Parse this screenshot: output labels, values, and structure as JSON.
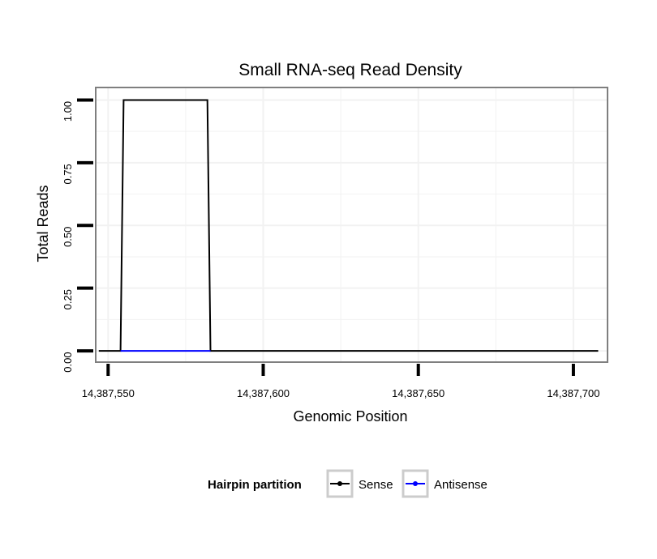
{
  "chart_data": {
    "type": "line",
    "title": "Small RNA-seq Read Density",
    "xlabel": "Genomic Position",
    "ylabel": "Total Reads",
    "xlim": [
      14387546,
      14387711
    ],
    "ylim": [
      -0.045,
      1.05
    ],
    "x_ticks": [
      14387550,
      14387600,
      14387650,
      14387700
    ],
    "x_tick_labels": [
      "14,387,550",
      "14,387,600",
      "14,387,650",
      "14,387,700"
    ],
    "y_ticks": [
      0,
      0.25,
      0.5,
      0.75,
      1
    ],
    "y_tick_labels": [
      "0.00",
      "0.25",
      "0.50",
      "0.75",
      "1.00"
    ],
    "grid": true,
    "legend": {
      "title": "Hairpin partition",
      "position": "bottom",
      "entries": [
        "Sense",
        "Antisense"
      ]
    },
    "series": [
      {
        "name": "Sense",
        "color": "#000000",
        "x": [
          14387547,
          14387554,
          14387555,
          14387582,
          14387583,
          14387708
        ],
        "values": [
          0,
          0,
          1,
          1,
          0,
          0
        ]
      },
      {
        "name": "Antisense",
        "color": "#0000ff",
        "x": [
          14387554,
          14387583
        ],
        "values": [
          0,
          0
        ]
      }
    ]
  }
}
